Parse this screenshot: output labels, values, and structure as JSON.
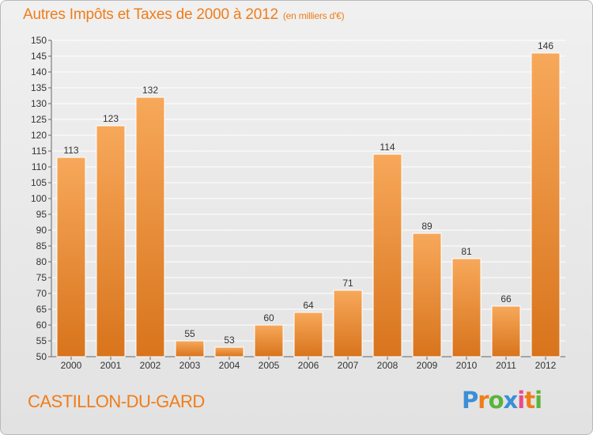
{
  "title": "Autres Impôts et Taxes de 2000 à 2012",
  "unit": "(en milliers d'€)",
  "location": "CASTILLON-DU-GARD",
  "brand": {
    "letters": [
      "P",
      "r",
      "o",
      "x",
      "i",
      "t",
      "i"
    ],
    "colors": [
      "#3a8fd6",
      "#ef7d1a",
      "#5ab43c",
      "#3a8fd6",
      "#e94b8a",
      "#ef7d1a",
      "#5ab43c"
    ]
  },
  "colors": {
    "accent": "#ef7d1a",
    "bar_light": "#f7a85a",
    "bar_dark": "#d8741c",
    "grid": "#ffffff"
  },
  "chart_data": {
    "type": "bar",
    "categories": [
      "2000",
      "2001",
      "2002",
      "2003",
      "2004",
      "2005",
      "2006",
      "2007",
      "2008",
      "2009",
      "2010",
      "2011",
      "2012"
    ],
    "values": [
      113,
      123,
      132,
      55,
      53,
      60,
      64,
      71,
      114,
      89,
      81,
      66,
      146
    ],
    "data_labels": [
      "113",
      "123",
      "132",
      "55",
      "53",
      "60",
      "64",
      "71",
      "114",
      "89",
      "81",
      "66",
      "146"
    ],
    "y_ticks": [
      "50",
      "55",
      "60",
      "65",
      "70",
      "75",
      "80",
      "85",
      "90",
      "95",
      "100",
      "105",
      "110",
      "115",
      "120",
      "125",
      "130",
      "135",
      "140",
      "145",
      "150"
    ],
    "ylim": [
      50,
      150
    ],
    "grid": true,
    "xlabel": "",
    "ylabel": ""
  }
}
